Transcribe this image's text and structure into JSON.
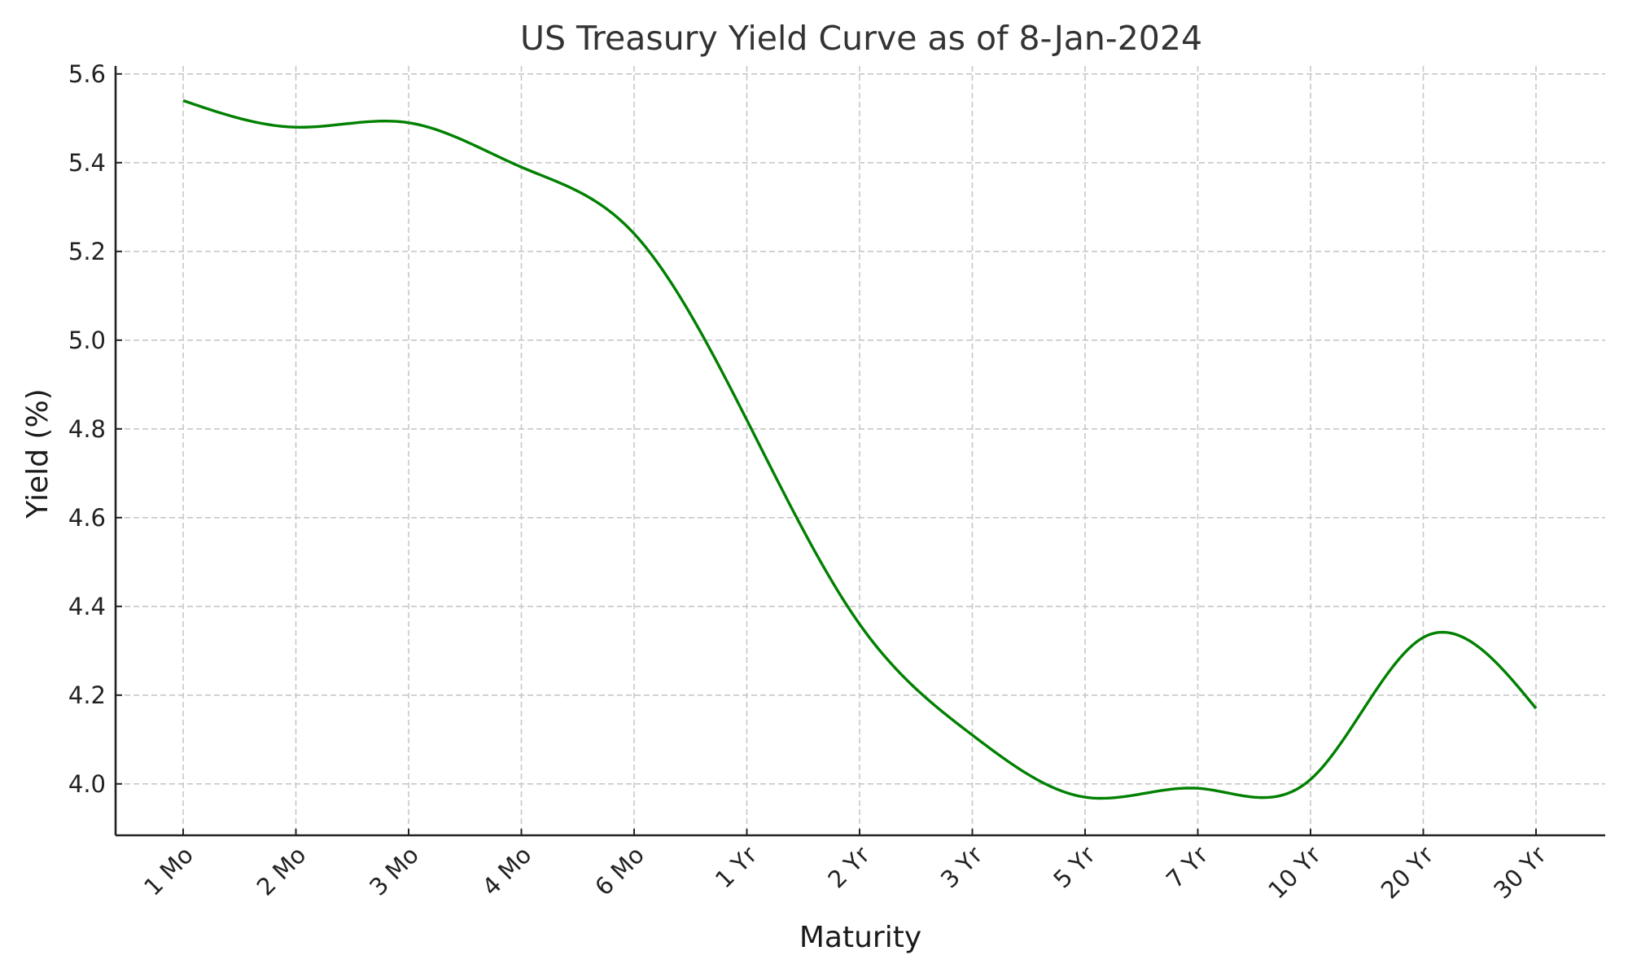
{
  "chart_data": {
    "type": "line",
    "title": "US Treasury Yield Curve as of 8-Jan-2024",
    "xlabel": "Maturity",
    "ylabel": "Yield (%)",
    "categories": [
      "1 Mo",
      "2 Mo",
      "3 Mo",
      "4 Mo",
      "6 Mo",
      "1 Yr",
      "2 Yr",
      "3 Yr",
      "5 Yr",
      "7 Yr",
      "10 Yr",
      "20 Yr",
      "30 Yr"
    ],
    "series": [
      {
        "name": "Yield",
        "color": "#008000",
        "values": [
          5.54,
          5.48,
          5.49,
          5.39,
          5.24,
          4.82,
          4.36,
          4.11,
          3.97,
          3.99,
          4.01,
          4.33,
          4.17
        ]
      }
    ],
    "ylim": [
      3.884,
      5.618
    ],
    "yticks": [
      "4.0",
      "4.2",
      "4.4",
      "4.6",
      "4.8",
      "5.0",
      "5.2",
      "5.4",
      "5.6"
    ],
    "grid": true,
    "grid_style": "dashed",
    "legend": false,
    "smoothed": true,
    "xtick_rotation": 45
  },
  "colors": {
    "line": "#008000",
    "grid": "#c8c8c8",
    "spine": "#222222",
    "title": "#333333"
  }
}
